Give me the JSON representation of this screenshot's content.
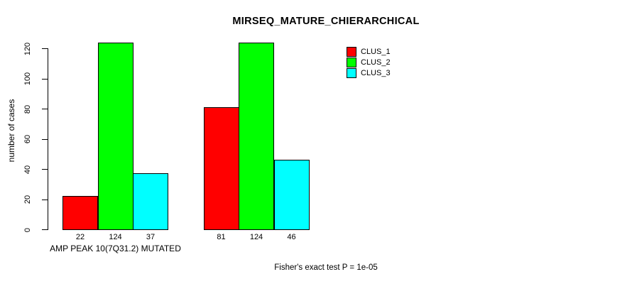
{
  "chart_data": {
    "type": "bar",
    "title": "MIRSEQ_MATURE_CHIERARCHICAL",
    "ylabel": "number of cases",
    "xlabel": "AMP PEAK 10(7Q31.2) MUTATED",
    "ylim": [
      0,
      120
    ],
    "yticks": [
      0,
      20,
      40,
      60,
      80,
      100,
      120
    ],
    "categories": [
      "AMP PEAK 10(7Q31.2) MUTATED",
      ""
    ],
    "series": [
      {
        "name": "CLUS_1",
        "color": "#ff0000",
        "values": [
          22,
          81
        ]
      },
      {
        "name": "CLUS_2",
        "color": "#00ff00",
        "values": [
          124,
          124
        ]
      },
      {
        "name": "CLUS_3",
        "color": "#00ffff",
        "values": [
          37,
          46
        ]
      }
    ],
    "show_bar_values": true,
    "legend": {
      "position": "top-right",
      "entries": [
        "CLUS_1",
        "CLUS_2",
        "CLUS_3"
      ]
    },
    "annotation": "Fisher's exact test P = 1e-05",
    "grid": false,
    "background": "#ffffff",
    "axis_color": "#000000"
  }
}
